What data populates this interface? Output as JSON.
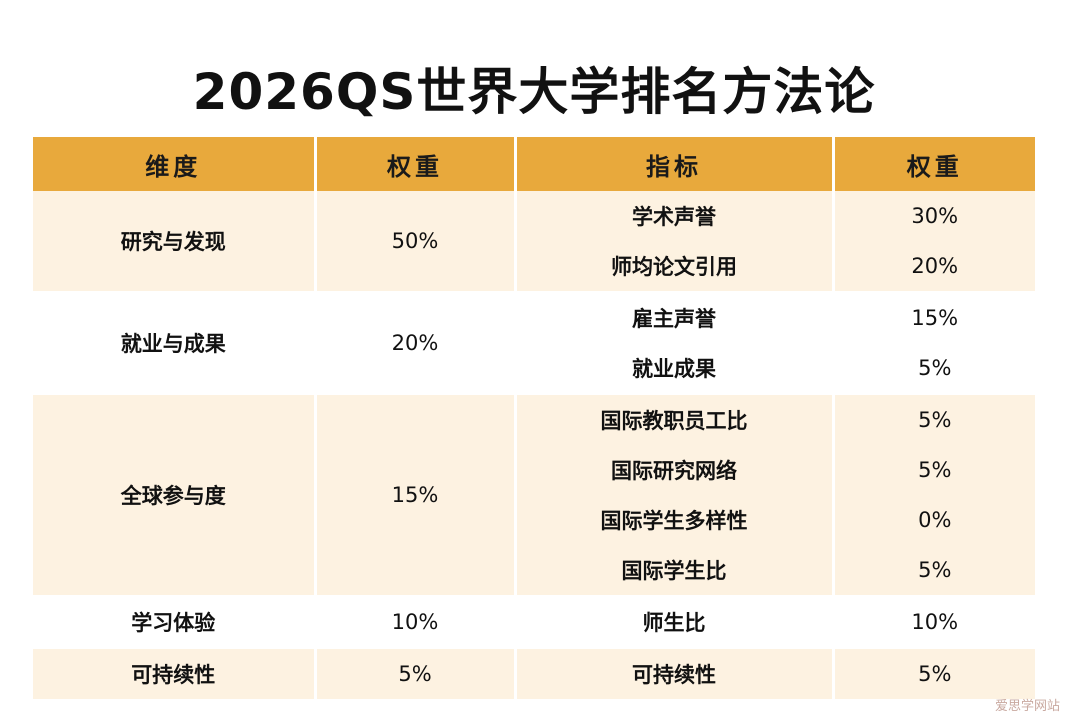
{
  "title": "2026QS世界大学排名方法论",
  "headers": [
    "维度",
    "权重",
    "指标",
    "权重"
  ],
  "groups": [
    {
      "dimension": "研究与发现",
      "weight": "50%",
      "indicators": [
        {
          "name": "学术声誉",
          "weight": "30%"
        },
        {
          "name": "师均论文引用",
          "weight": "20%"
        }
      ]
    },
    {
      "dimension": "就业与成果",
      "weight": "20%",
      "indicators": [
        {
          "name": "雇主声誉",
          "weight": "15%"
        },
        {
          "name": "就业成果",
          "weight": "5%"
        }
      ]
    },
    {
      "dimension": "全球参与度",
      "weight": "15%",
      "indicators": [
        {
          "name": "国际教职员工比",
          "weight": "5%"
        },
        {
          "name": "国际研究网络",
          "weight": "5%"
        },
        {
          "name": "国际学生多样性",
          "weight": "0%"
        },
        {
          "name": "国际学生比",
          "weight": "5%"
        }
      ]
    },
    {
      "dimension": "学习体验",
      "weight": "10%",
      "indicators": [
        {
          "name": "师生比",
          "weight": "10%"
        }
      ]
    },
    {
      "dimension": "可持续性",
      "weight": "5%",
      "indicators": [
        {
          "name": "可持续性",
          "weight": "5%"
        }
      ]
    }
  ],
  "watermark": "爱思学网站"
}
